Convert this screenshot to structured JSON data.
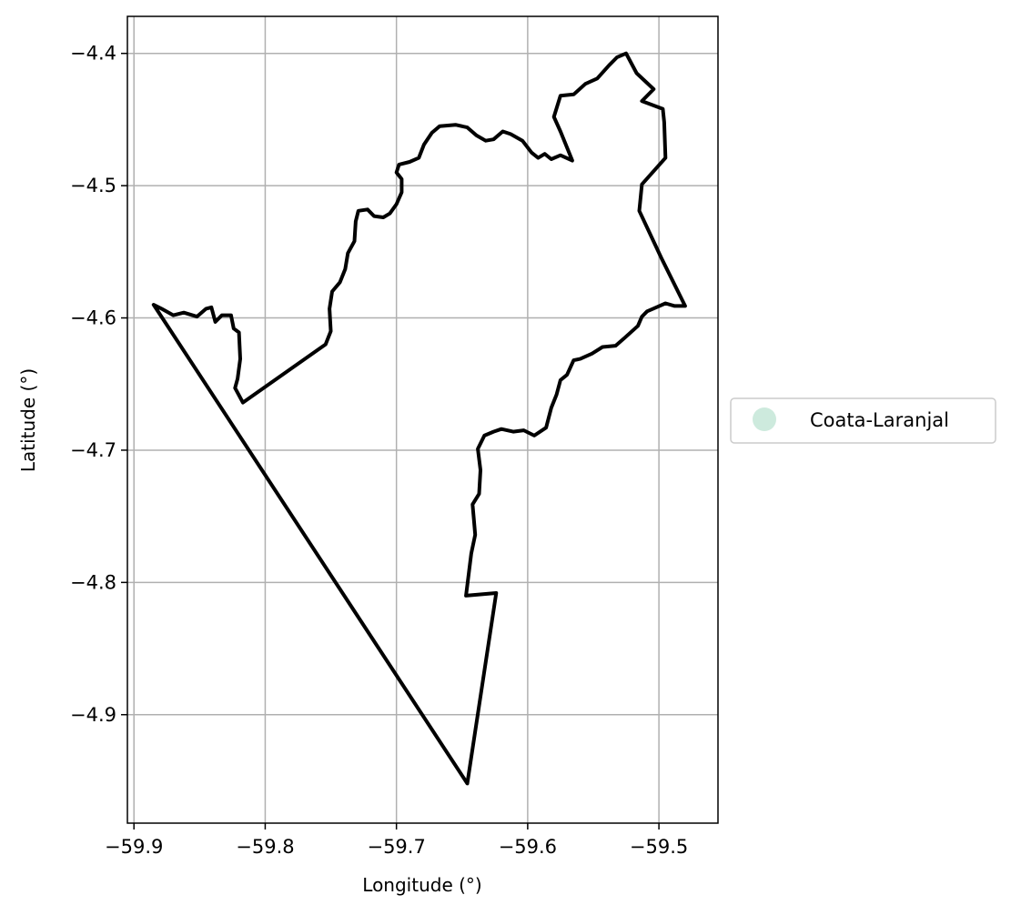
{
  "chart_data": {
    "type": "map",
    "xlabel": "Longitude (°)",
    "ylabel": "Latitude (°)",
    "xlim": [
      -59.905,
      -59.455
    ],
    "ylim": [
      -4.982,
      -4.372
    ],
    "grid": true,
    "x_ticks": [
      -59.9,
      -59.8,
      -59.7,
      -59.6,
      -59.5
    ],
    "x_tick_labels": [
      "−59.9",
      "−59.8",
      "−59.7",
      "−59.6",
      "−59.5"
    ],
    "y_ticks": [
      -4.4,
      -4.5,
      -4.6,
      -4.7,
      -4.8,
      -4.9
    ],
    "y_tick_labels": [
      "−4.4",
      "−4.5",
      "−4.6",
      "−4.7",
      "−4.8",
      "−4.9"
    ],
    "legend": {
      "placement": "center-right-outside",
      "entries": [
        {
          "label": "Coata-Laranjal",
          "color": "#cdeadd"
        }
      ]
    },
    "boundary": {
      "name": "Coata-Laranjal",
      "stroke": "#000000",
      "coordinates": [
        [
          -59.885,
          -4.59
        ],
        [
          -59.879,
          -4.593
        ],
        [
          -59.87,
          -4.598
        ],
        [
          -59.862,
          -4.596
        ],
        [
          -59.852,
          -4.599
        ],
        [
          -59.845,
          -4.593
        ],
        [
          -59.841,
          -4.592
        ],
        [
          -59.838,
          -4.603
        ],
        [
          -59.833,
          -4.598
        ],
        [
          -59.826,
          -4.598
        ],
        [
          -59.824,
          -4.608
        ],
        [
          -59.82,
          -4.611
        ],
        [
          -59.819,
          -4.631
        ],
        [
          -59.821,
          -4.646
        ],
        [
          -59.823,
          -4.653
        ],
        [
          -59.817,
          -4.664
        ],
        [
          -59.754,
          -4.62
        ],
        [
          -59.75,
          -4.61
        ],
        [
          -59.751,
          -4.593
        ],
        [
          -59.749,
          -4.58
        ],
        [
          -59.743,
          -4.573
        ],
        [
          -59.739,
          -4.563
        ],
        [
          -59.737,
          -4.551
        ],
        [
          -59.732,
          -4.542
        ],
        [
          -59.731,
          -4.527
        ],
        [
          -59.729,
          -4.519
        ],
        [
          -59.722,
          -4.518
        ],
        [
          -59.717,
          -4.523
        ],
        [
          -59.71,
          -4.524
        ],
        [
          -59.705,
          -4.521
        ],
        [
          -59.7,
          -4.514
        ],
        [
          -59.696,
          -4.505
        ],
        [
          -59.696,
          -4.495
        ],
        [
          -59.7,
          -4.49
        ],
        [
          -59.698,
          -4.484
        ],
        [
          -59.69,
          -4.482
        ],
        [
          -59.683,
          -4.479
        ],
        [
          -59.679,
          -4.469
        ],
        [
          -59.673,
          -4.46
        ],
        [
          -59.667,
          -4.455
        ],
        [
          -59.655,
          -4.454
        ],
        [
          -59.646,
          -4.456
        ],
        [
          -59.639,
          -4.462
        ],
        [
          -59.632,
          -4.466
        ],
        [
          -59.626,
          -4.465
        ],
        [
          -59.619,
          -4.459
        ],
        [
          -59.613,
          -4.461
        ],
        [
          -59.604,
          -4.466
        ],
        [
          -59.597,
          -4.475
        ],
        [
          -59.592,
          -4.479
        ],
        [
          -59.587,
          -4.476
        ],
        [
          -59.582,
          -4.48
        ],
        [
          -59.575,
          -4.477
        ],
        [
          -59.566,
          -4.481
        ],
        [
          -59.575,
          -4.459
        ],
        [
          -59.58,
          -4.448
        ],
        [
          -59.575,
          -4.432
        ],
        [
          -59.565,
          -4.431
        ],
        [
          -59.556,
          -4.423
        ],
        [
          -59.547,
          -4.419
        ],
        [
          -59.538,
          -4.409
        ],
        [
          -59.532,
          -4.403
        ],
        [
          -59.525,
          -4.4
        ],
        [
          -59.517,
          -4.415
        ],
        [
          -59.504,
          -4.427
        ],
        [
          -59.513,
          -4.436
        ],
        [
          -59.497,
          -4.442
        ],
        [
          -59.496,
          -4.452
        ],
        [
          -59.495,
          -4.479
        ],
        [
          -59.513,
          -4.499
        ],
        [
          -59.515,
          -4.519
        ],
        [
          -59.498,
          -4.555
        ],
        [
          -59.48,
          -4.591
        ],
        [
          -59.488,
          -4.591
        ],
        [
          -59.495,
          -4.589
        ],
        [
          -59.502,
          -4.592
        ],
        [
          -59.509,
          -4.595
        ],
        [
          -59.513,
          -4.599
        ],
        [
          -59.516,
          -4.606
        ],
        [
          -59.526,
          -4.615
        ],
        [
          -59.533,
          -4.621
        ],
        [
          -59.543,
          -4.622
        ],
        [
          -59.551,
          -4.627
        ],
        [
          -59.56,
          -4.631
        ],
        [
          -59.565,
          -4.632
        ],
        [
          -59.57,
          -4.643
        ],
        [
          -59.575,
          -4.647
        ],
        [
          -59.578,
          -4.658
        ],
        [
          -59.582,
          -4.668
        ],
        [
          -59.586,
          -4.683
        ],
        [
          -59.595,
          -4.689
        ],
        [
          -59.603,
          -4.685
        ],
        [
          -59.611,
          -4.686
        ],
        [
          -59.62,
          -4.684
        ],
        [
          -59.626,
          -4.686
        ],
        [
          -59.633,
          -4.689
        ],
        [
          -59.638,
          -4.699
        ],
        [
          -59.636,
          -4.715
        ],
        [
          -59.637,
          -4.733
        ],
        [
          -59.642,
          -4.741
        ],
        [
          -59.641,
          -4.752
        ],
        [
          -59.64,
          -4.764
        ],
        [
          -59.643,
          -4.778
        ],
        [
          -59.647,
          -4.81
        ],
        [
          -59.624,
          -4.808
        ],
        [
          -59.646,
          -4.952
        ],
        [
          -59.885,
          -4.59
        ]
      ]
    }
  }
}
